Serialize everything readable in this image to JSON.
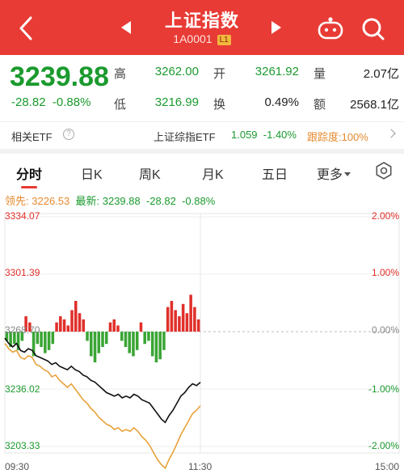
{
  "header": {
    "title": "上证指数",
    "code": "1A0001",
    "badge": "L1",
    "back_icon": "chevron-left-icon",
    "prev_icon": "triangle-left-icon",
    "next_icon": "triangle-right-icon",
    "bot_icon": "robot-icon",
    "search_icon": "search-icon"
  },
  "quote": {
    "price": "3239.88",
    "change": "-28.82",
    "change_pct": "-0.88%",
    "stats": [
      {
        "label": "高",
        "value": "3262.00",
        "color": "green"
      },
      {
        "label": "开",
        "value": "3261.92",
        "color": "green"
      },
      {
        "label": "量",
        "value": "2.07亿",
        "color": "dark"
      },
      {
        "label": "低",
        "value": "3216.99",
        "color": "green"
      },
      {
        "label": "换",
        "value": "0.49%",
        "color": "dark"
      },
      {
        "label": "额",
        "value": "2568.1亿",
        "color": "dark"
      }
    ]
  },
  "etf": {
    "label": "相关ETF",
    "help": "?",
    "name": "上证综指ETF",
    "price": "1.059",
    "pct": "-1.40%",
    "tracking": "跟踪度:100%"
  },
  "tabs": [
    {
      "label": "分时",
      "active": true
    },
    {
      "label": "日K"
    },
    {
      "label": "周K"
    },
    {
      "label": "月K"
    },
    {
      "label": "五日"
    },
    {
      "label": "更多"
    }
  ],
  "legend": {
    "lead_label": "领先:",
    "lead_value": "3226.53",
    "latest_label": "最新:",
    "latest_value": "3239.88",
    "latest_change": "-28.82",
    "latest_pct": "-0.88%"
  },
  "chart_data": {
    "type": "line",
    "y_left_ticks": [
      "3334.07",
      "3301.39",
      "3268.70",
      "3236.02",
      "3203.33"
    ],
    "y_right_ticks": [
      "2.00%",
      "1.00%",
      "0.00%",
      "-1.00%",
      "-2.00%"
    ],
    "x_ticks": [
      "09:30",
      "11:30",
      "15:00"
    ],
    "base": 3268.7,
    "ylim": [
      3203.33,
      3334.07
    ],
    "series": [
      {
        "color": "#111111"
      },
      {
        "color": "#e8a23a"
      }
    ],
    "price_line": [
      3265,
      3262,
      3260,
      3262,
      3258,
      3257,
      3259,
      3258,
      3255,
      3254,
      3253,
      3252,
      3250,
      3251,
      3249,
      3248,
      3247,
      3249,
      3247,
      3246,
      3244,
      3243,
      3241,
      3240,
      3238,
      3236,
      3234,
      3233,
      3232,
      3233,
      3231,
      3232,
      3231,
      3233,
      3232,
      3230,
      3229,
      3228,
      3225,
      3222,
      3219,
      3217,
      3221,
      3224,
      3228,
      3232,
      3234,
      3237,
      3239,
      3238,
      3239.88
    ],
    "lead_line": [
      3262,
      3259,
      3257,
      3258,
      3254,
      3253,
      3255,
      3254,
      3250,
      3249,
      3247,
      3246,
      3243,
      3244,
      3241,
      3239,
      3237,
      3239,
      3236,
      3233,
      3230,
      3228,
      3225,
      3223,
      3220,
      3218,
      3216,
      3215,
      3213,
      3214,
      3212,
      3213,
      3212,
      3214,
      3212,
      3209,
      3207,
      3204,
      3200,
      3196,
      3193,
      3191,
      3196,
      3200,
      3205,
      3210,
      3214,
      3218,
      3222,
      3224,
      3226.53
    ],
    "volume_bars": [
      -0.3,
      -0.5,
      -0.4,
      -0.6,
      -0.3,
      0.5,
      0.3,
      -0.8,
      -0.4,
      -0.5,
      -0.7,
      -0.6,
      -0.4,
      0.3,
      0.5,
      0.4,
      0.2,
      0.7,
      1.0,
      0.6,
      0.4,
      -0.3,
      -0.8,
      -1.0,
      -0.7,
      -0.5,
      -0.4,
      0.3,
      0.4,
      0.2,
      -0.3,
      -0.5,
      -0.7,
      -0.8,
      -0.6,
      0.3,
      -0.4,
      -0.3,
      -0.8,
      -1.0,
      -0.9,
      -0.6,
      0.8,
      1.0,
      0.7,
      0.5,
      0.9,
      0.6,
      1.2,
      0.8,
      0.4
    ]
  }
}
